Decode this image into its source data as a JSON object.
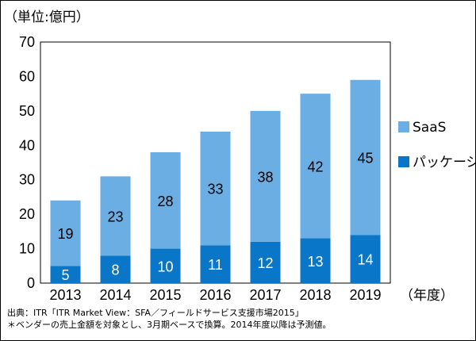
{
  "chart_data": {
    "type": "bar",
    "stacked": true,
    "unit_label": "（単位:億円）",
    "x_suffix": "（年度）",
    "categories": [
      "2013",
      "2014",
      "2015",
      "2016",
      "2017",
      "2018",
      "2019"
    ],
    "series": [
      {
        "name": "パッケージ",
        "values": [
          5,
          8,
          10,
          11,
          12,
          13,
          14
        ],
        "color": "#0a76c8",
        "label_color": "#ffffff"
      },
      {
        "name": "SaaS",
        "values": [
          19,
          23,
          28,
          33,
          38,
          42,
          45
        ],
        "color": "#6aaee3",
        "label_color": "#000000"
      }
    ],
    "ylim": [
      0,
      70
    ],
    "yticks": [
      0,
      10,
      20,
      30,
      40,
      50,
      60,
      70
    ],
    "grid": false,
    "legend_position": "right"
  },
  "notes": {
    "source": "出典：ITR「ITR Market View：SFA／フィールドサービス支援市場2015」",
    "footnote": "＊ベンダーの売上金額を対象とし、3月期ベースで換算。2014年度以降は予測値。"
  }
}
